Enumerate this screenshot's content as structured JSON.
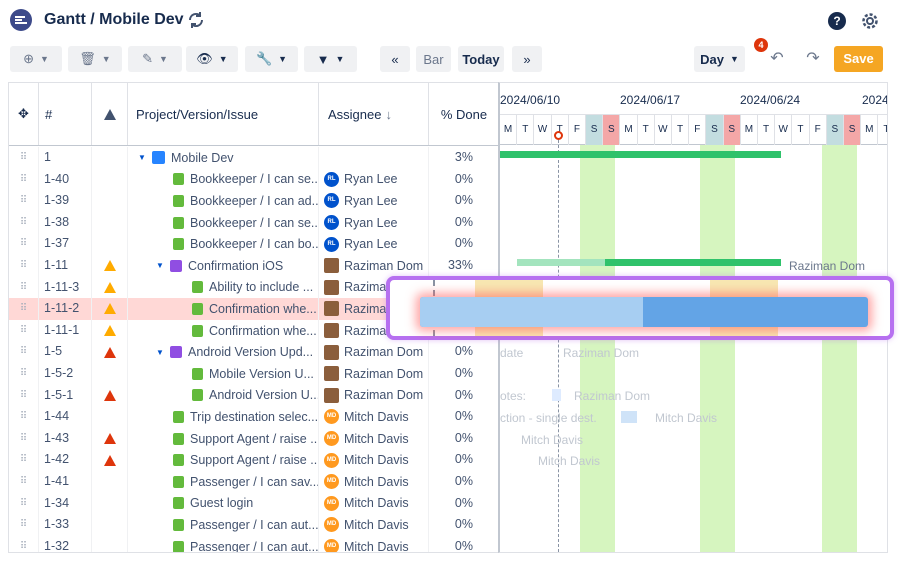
{
  "header": {
    "title": "Gantt / Mobile Dev",
    "help": "?"
  },
  "toolbar": {
    "bar_label": "Bar",
    "today_label": "Today",
    "zoom_label": "Day",
    "save_label": "Save",
    "notifications": "4"
  },
  "columns": {
    "id": "#",
    "name": "Project/Version/Issue",
    "assignee": "Assignee",
    "done": "% Done"
  },
  "rows": [
    {
      "id": "1",
      "name": "Mobile Dev",
      "assignee": "",
      "done": "3%"
    },
    {
      "id": "1-40",
      "name": "Bookkeeper / I can se...",
      "assignee": "Ryan Lee",
      "done": "0%"
    },
    {
      "id": "1-39",
      "name": "Bookkeeper / I can ad...",
      "assignee": "Ryan Lee",
      "done": "0%"
    },
    {
      "id": "1-38",
      "name": "Bookkeeper / I can se...",
      "assignee": "Ryan Lee",
      "done": "0%"
    },
    {
      "id": "1-37",
      "name": "Bookkeeper / I can bo...",
      "assignee": "Ryan Lee",
      "done": "0%"
    },
    {
      "id": "1-11",
      "name": "Confirmation iOS",
      "assignee": "Raziman Dom",
      "done": "33%"
    },
    {
      "id": "1-11-3",
      "name": "Ability to include ...",
      "assignee": "Raziman",
      "done": ""
    },
    {
      "id": "1-11-2",
      "name": "Confirmation whe...",
      "assignee": "Raziman",
      "done": ""
    },
    {
      "id": "1-11-1",
      "name": "Confirmation whe...",
      "assignee": "Raziman",
      "done": ""
    },
    {
      "id": "1-5",
      "name": "Android Version Upd...",
      "assignee": "Raziman Dom",
      "done": "0%"
    },
    {
      "id": "1-5-2",
      "name": "Mobile Version U...",
      "assignee": "Raziman Dom",
      "done": "0%"
    },
    {
      "id": "1-5-1",
      "name": "Android Version U...",
      "assignee": "Raziman Dom",
      "done": "0%"
    },
    {
      "id": "1-44",
      "name": "Trip destination selec...",
      "assignee": "Mitch Davis",
      "done": "0%"
    },
    {
      "id": "1-43",
      "name": "Support Agent / raise ...",
      "assignee": "Mitch Davis",
      "done": "0%"
    },
    {
      "id": "1-42",
      "name": "Support Agent / raise ...",
      "assignee": "Mitch Davis",
      "done": "0%"
    },
    {
      "id": "1-41",
      "name": "Passenger / I can sav...",
      "assignee": "Mitch Davis",
      "done": "0%"
    },
    {
      "id": "1-34",
      "name": "Guest login",
      "assignee": "Mitch Davis",
      "done": "0%"
    },
    {
      "id": "1-33",
      "name": "Passenger / I can aut...",
      "assignee": "Mitch Davis",
      "done": "0%"
    },
    {
      "id": "1-32",
      "name": "Passenger / I can aut...",
      "assignee": "Mitch Davis",
      "done": "0%"
    }
  ],
  "avatars": {
    "rl": "RL",
    "md": "MD"
  },
  "timeline": {
    "weeks": [
      "2024/06/10",
      "2024/06/17",
      "2024/06/24",
      "2024"
    ],
    "days": [
      "M",
      "T",
      "W",
      "T",
      "F",
      "S",
      "S",
      "M",
      "T",
      "W",
      "T",
      "F",
      "S",
      "S",
      "M",
      "T",
      "W",
      "T",
      "F",
      "S",
      "S",
      "M",
      "T"
    ],
    "first_partial_days": [
      "M",
      "T",
      "W",
      "T",
      "F",
      "S",
      "S"
    ],
    "labels": {
      "confirmation_ios": "Raziman Dom",
      "ghost1": "date",
      "ghost2": "Raziman Dom",
      "ghost3": "otes:",
      "ghost4": "Raziman Dom",
      "ghost5": "ction - single dest.",
      "ghost6": "Mitch Davis",
      "ghost7": "Mitch Davis",
      "ghost8": "Mitch Davis"
    }
  },
  "colors": {
    "accent": "#0052cc",
    "save": "#f5a623",
    "selection": "#ffd8d6",
    "bar_green": "#2fc26b",
    "bar_blue": "#63a4e6",
    "highlight": "#b670f0"
  }
}
